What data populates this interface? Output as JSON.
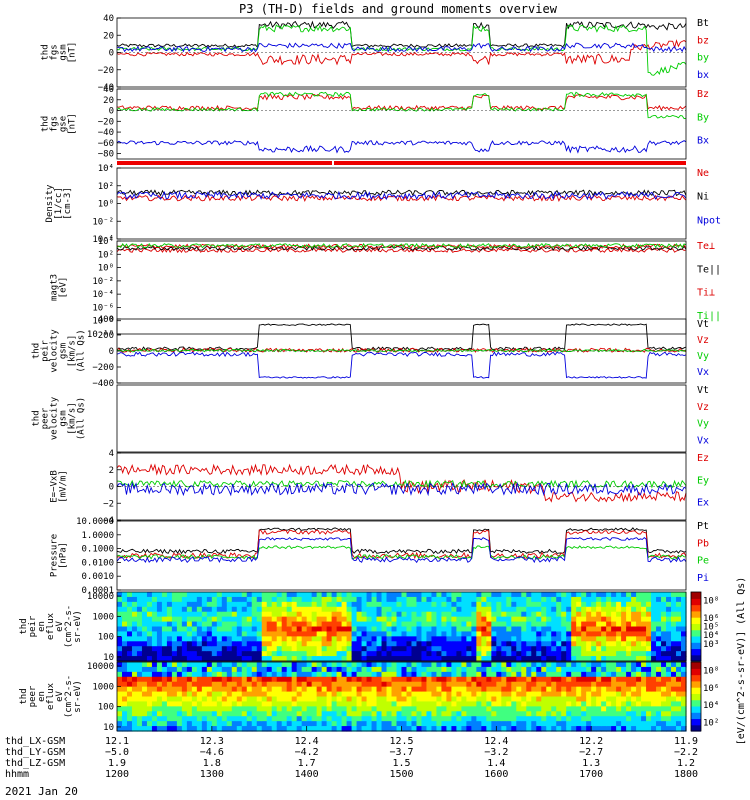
{
  "chart_data": {
    "type": "line",
    "title": "P3 (TH-D) fields and ground moments overview",
    "date_label": "2021 Jan 20",
    "panels": [
      {
        "id": "fgs-gsm",
        "ylabel": [
          "thd",
          "fgs",
          "gsm",
          "[nT]"
        ],
        "ylim": [
          -40,
          40
        ],
        "ticks": [
          {
            "v": 40,
            "label": "40"
          },
          {
            "v": 20,
            "label": "20"
          },
          {
            "v": 0,
            "label": "0"
          },
          {
            "v": -20,
            "label": "−20"
          },
          {
            "v": -40,
            "label": "−40"
          }
        ],
        "series": [
          {
            "name": "Bt",
            "color": "#000000"
          },
          {
            "name": "bz",
            "color": "#dd0000"
          },
          {
            "name": "by",
            "color": "#00cc00"
          },
          {
            "name": "bx",
            "color": "#0000dd"
          }
        ]
      },
      {
        "id": "fgs-gse",
        "ylabel": [
          "thd",
          "fgs",
          "gse",
          "[nT]"
        ],
        "ylim": [
          -90,
          40
        ],
        "ticks": [
          {
            "v": 40,
            "label": "40"
          },
          {
            "v": 20,
            "label": "20"
          },
          {
            "v": 0,
            "label": "0"
          },
          {
            "v": -20,
            "label": "−20"
          },
          {
            "v": -40,
            "label": "−40"
          },
          {
            "v": -60,
            "label": "−60"
          },
          {
            "v": -80,
            "label": "−80"
          }
        ],
        "series": [
          {
            "name": "Bz",
            "color": "#dd0000"
          },
          {
            "name": "By",
            "color": "#00cc00"
          },
          {
            "name": "Bx",
            "color": "#0000dd"
          }
        ]
      },
      {
        "id": "density",
        "ylabel": [
          "Density",
          "[1/cc]",
          "[cm-3]"
        ],
        "scale": "log",
        "ylim_exp": [
          -4,
          4
        ],
        "ticks": [
          {
            "v": 4,
            "label": "10⁴"
          },
          {
            "v": 2,
            "label": "10²"
          },
          {
            "v": 0,
            "label": "10⁰"
          },
          {
            "v": -2,
            "label": "10⁻²"
          },
          {
            "v": -4,
            "label": "10⁻⁴"
          }
        ],
        "series": [
          {
            "name": "Ne",
            "color": "#dd0000"
          },
          {
            "name": "Ni",
            "color": "#000000"
          },
          {
            "name": "Npot",
            "color": "#0000dd"
          }
        ]
      },
      {
        "id": "temperature",
        "ylabel": [
          "magt3",
          "[eV]"
        ],
        "scale": "log",
        "ylim_exp": [
          -10,
          4
        ],
        "ticks": [
          {
            "v": 4,
            "label": "10⁴"
          },
          {
            "v": 2,
            "label": "10²"
          },
          {
            "v": 0,
            "label": "10⁰"
          },
          {
            "v": -2,
            "label": "10⁻²"
          },
          {
            "v": -4,
            "label": "10⁻⁴"
          },
          {
            "v": -6,
            "label": "10⁻⁶"
          },
          {
            "v": -8,
            "label": "10⁻⁸"
          },
          {
            "v": -10,
            "label": "10⁻¹⁰"
          }
        ],
        "series": [
          {
            "name": "Te⊥",
            "color": "#dd0000"
          },
          {
            "name": "Te||",
            "color": "#000000"
          },
          {
            "name": "Ti⊥",
            "color": "#dd0000"
          },
          {
            "name": "Ti||",
            "color": "#00cc00"
          }
        ]
      },
      {
        "id": "peir-velocity",
        "ylabel": [
          "thd",
          "peir",
          "velocity",
          "gsm",
          "[km/s]",
          "(All Qs)"
        ],
        "ylim": [
          -400,
          400
        ],
        "ticks": [
          {
            "v": 400,
            "label": "400"
          },
          {
            "v": 200,
            "label": "200"
          },
          {
            "v": 0,
            "label": "0"
          },
          {
            "v": -200,
            "label": "−200"
          },
          {
            "v": -400,
            "label": "−400"
          }
        ],
        "series": [
          {
            "name": "Vt",
            "color": "#000000"
          },
          {
            "name": "Vz",
            "color": "#dd0000"
          },
          {
            "name": "Vy",
            "color": "#00cc00"
          },
          {
            "name": "Vx",
            "color": "#0000dd"
          }
        ]
      },
      {
        "id": "peer-velocity",
        "ylabel": [
          "thd",
          "peer",
          "velocity",
          "gsm",
          "[km/s]",
          "(All Qs)"
        ],
        "ylim": [
          -1,
          1
        ],
        "ticks": [],
        "series": [
          {
            "name": "Vt",
            "color": "#000000"
          },
          {
            "name": "Vz",
            "color": "#dd0000"
          },
          {
            "name": "Vy",
            "color": "#00cc00"
          },
          {
            "name": "Vx",
            "color": "#0000dd"
          }
        ]
      },
      {
        "id": "efield",
        "ylabel": [
          "E=−VxB",
          "[mV/m]"
        ],
        "ylim": [
          -4,
          4
        ],
        "ticks": [
          {
            "v": 4,
            "label": "4"
          },
          {
            "v": 2,
            "label": "2"
          },
          {
            "v": 0,
            "label": "0"
          },
          {
            "v": -2,
            "label": "−2"
          },
          {
            "v": -4,
            "label": "−4"
          }
        ],
        "series": [
          {
            "name": "Ez",
            "color": "#dd0000"
          },
          {
            "name": "Ey",
            "color": "#00cc00"
          },
          {
            "name": "Ex",
            "color": "#0000dd"
          }
        ]
      },
      {
        "id": "pressure",
        "ylabel": [
          "Pressure",
          "[nPa]"
        ],
        "scale": "log",
        "ylim_exp": [
          -4,
          1
        ],
        "ticks": [
          {
            "v": 1,
            "label": "10.0000"
          },
          {
            "v": 0,
            "label": "1.0000"
          },
          {
            "v": -1,
            "label": "0.1000"
          },
          {
            "v": -2,
            "label": "0.0100"
          },
          {
            "v": -3,
            "label": "0.0010"
          },
          {
            "v": -4,
            "label": "0.0001"
          }
        ],
        "series": [
          {
            "name": "Pt",
            "color": "#000000"
          },
          {
            "name": "Pb",
            "color": "#dd0000"
          },
          {
            "name": "Pe",
            "color": "#00cc00"
          },
          {
            "name": "Pi",
            "color": "#0000dd"
          }
        ]
      },
      {
        "id": "peir-spectrogram",
        "type": "heatmap",
        "ylabel": [
          "thd",
          "peir",
          "en",
          "eflux",
          "eV",
          "(cm^2-s-",
          "sr-eV)"
        ],
        "ticks": [
          {
            "v": 4,
            "label": "10000"
          },
          {
            "v": 3,
            "label": "1000"
          },
          {
            "v": 2,
            "label": "100"
          },
          {
            "v": 1,
            "label": "10"
          }
        ],
        "colorbar_ticks": [
          {
            "v": 8,
            "label": "10⁸"
          },
          {
            "v": 6,
            "label": "10⁶"
          },
          {
            "v": 5,
            "label": "10⁵"
          },
          {
            "v": 4,
            "label": "10⁴"
          },
          {
            "v": 3,
            "label": "10³"
          }
        ]
      },
      {
        "id": "peer-spectrogram",
        "type": "heatmap",
        "ylabel": [
          "thd",
          "peer",
          "en",
          "eflux",
          "eV",
          "(cm^2-s-",
          "sr-eV)"
        ],
        "ticks": [
          {
            "v": 4,
            "label": "10000"
          },
          {
            "v": 3,
            "label": "1000"
          },
          {
            "v": 2,
            "label": "100"
          },
          {
            "v": 1,
            "label": "10"
          }
        ],
        "colorbar_ticks": [
          {
            "v": 8,
            "label": "10⁸"
          },
          {
            "v": 6,
            "label": "10⁶"
          },
          {
            "v": 4,
            "label": "10⁴"
          },
          {
            "v": 2,
            "label": "10²"
          }
        ]
      }
    ],
    "colorbar_label": "[eV/(cm^2-s-sr-eV)] (All Qs)",
    "x_axis": {
      "row_labels": [
        "thd_LX-GSM",
        "thd_LY-GSM",
        "thd_LZ-GSM",
        "hhmm"
      ],
      "ticks": [
        {
          "LX": "12.1",
          "LY": "−5.0",
          "LZ": "1.9",
          "hhmm": "1200"
        },
        {
          "LX": "12.3",
          "LY": "−4.6",
          "LZ": "1.8",
          "hhmm": "1300"
        },
        {
          "LX": "12.4",
          "LY": "−4.2",
          "LZ": "1.7",
          "hhmm": "1400"
        },
        {
          "LX": "12.5",
          "LY": "−3.7",
          "LZ": "1.5",
          "hhmm": "1500"
        },
        {
          "LX": "12.4",
          "LY": "−3.2",
          "LZ": "1.4",
          "hhmm": "1600"
        },
        {
          "LX": "12.2",
          "LY": "−2.7",
          "LZ": "1.3",
          "hhmm": "1700"
        },
        {
          "LX": "11.9",
          "LY": "−2.2",
          "LZ": "1.2",
          "hhmm": "1800"
        }
      ]
    }
  }
}
